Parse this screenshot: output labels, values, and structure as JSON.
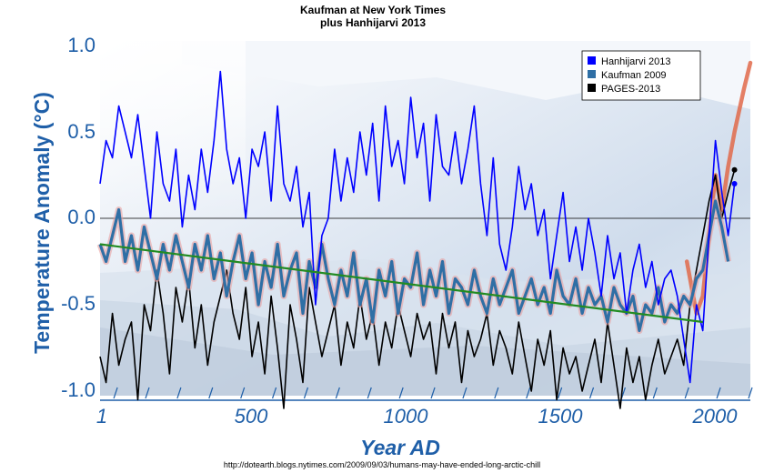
{
  "chart_data": {
    "type": "line",
    "title": "Kaufman at New York Times",
    "subtitle": "plus Hanhijarvi 2013",
    "xlabel": "Year AD",
    "ylabel": "Temperature Anomaly (°C)",
    "xlim": [
      1,
      2050
    ],
    "ylim": [
      -1.0,
      1.0
    ],
    "x_ticks": [
      "1",
      "500",
      "1000",
      "1500",
      "2000"
    ],
    "x_tick_values": [
      1,
      500,
      1000,
      1500,
      2000
    ],
    "y_ticks": [
      "1.0",
      "0.5",
      "0.0",
      "-0.5",
      "-1.0"
    ],
    "y_tick_values": [
      1.0,
      0.5,
      0.0,
      -0.5,
      -1.0
    ],
    "zero_line": true,
    "legend_position": "top-right",
    "source_url": "http://dotearth.blogs.nytimes.com/2009/09/03/humans-may-have-ended-long-arctic-chill",
    "series": [
      {
        "name": "Hanhijarvi 2013",
        "color": "#0000ff",
        "x": [
          1,
          20,
          40,
          60,
          80,
          100,
          120,
          140,
          160,
          180,
          200,
          220,
          240,
          260,
          280,
          300,
          320,
          340,
          360,
          380,
          400,
          420,
          440,
          460,
          480,
          500,
          520,
          540,
          560,
          580,
          600,
          620,
          640,
          660,
          680,
          700,
          720,
          740,
          760,
          780,
          800,
          820,
          840,
          860,
          880,
          900,
          920,
          940,
          960,
          980,
          1000,
          1020,
          1040,
          1060,
          1080,
          1100,
          1120,
          1140,
          1160,
          1180,
          1200,
          1220,
          1240,
          1260,
          1280,
          1300,
          1320,
          1340,
          1360,
          1380,
          1400,
          1420,
          1440,
          1460,
          1480,
          1500,
          1520,
          1540,
          1560,
          1580,
          1600,
          1620,
          1640,
          1660,
          1680,
          1700,
          1720,
          1740,
          1760,
          1780,
          1800,
          1820,
          1840,
          1860,
          1880,
          1900,
          1920,
          1940,
          1960,
          1980,
          2000
        ],
        "values": [
          0.2,
          0.45,
          0.35,
          0.65,
          0.5,
          0.35,
          0.6,
          0.3,
          0.0,
          0.5,
          0.2,
          0.1,
          0.4,
          -0.05,
          0.25,
          0.05,
          0.4,
          0.15,
          0.45,
          0.85,
          0.4,
          0.2,
          0.35,
          0.0,
          0.4,
          0.3,
          0.5,
          0.1,
          0.65,
          0.2,
          0.1,
          0.3,
          -0.05,
          0.15,
          -0.5,
          -0.1,
          0.0,
          0.4,
          0.1,
          0.35,
          0.15,
          0.5,
          0.25,
          0.55,
          0.1,
          0.65,
          0.3,
          0.45,
          0.2,
          0.7,
          0.35,
          0.55,
          0.1,
          0.6,
          0.3,
          0.25,
          0.5,
          0.2,
          0.4,
          0.65,
          0.2,
          -0.1,
          0.35,
          -0.15,
          -0.3,
          -0.05,
          0.3,
          0.05,
          0.2,
          -0.1,
          0.05,
          -0.35,
          -0.1,
          0.15,
          -0.25,
          -0.05,
          -0.3,
          0.0,
          -0.2,
          -0.45,
          -0.1,
          -0.35,
          -0.2,
          -0.55,
          -0.3,
          -0.15,
          -0.4,
          -0.25,
          -0.5,
          -0.35,
          -0.3,
          -0.45,
          -0.7,
          -0.95,
          -0.5,
          -0.65,
          -0.1,
          0.45,
          0.15,
          -0.1,
          0.2
        ]
      },
      {
        "name": "Kaufman 2009",
        "color": "#2f6fa5",
        "x": [
          1,
          20,
          40,
          60,
          80,
          100,
          120,
          140,
          160,
          180,
          200,
          220,
          240,
          260,
          280,
          300,
          320,
          340,
          360,
          380,
          400,
          420,
          440,
          460,
          480,
          500,
          520,
          540,
          560,
          580,
          600,
          620,
          640,
          660,
          680,
          700,
          720,
          740,
          760,
          780,
          800,
          820,
          840,
          860,
          880,
          900,
          920,
          940,
          960,
          980,
          1000,
          1020,
          1040,
          1060,
          1080,
          1100,
          1120,
          1140,
          1160,
          1180,
          1200,
          1220,
          1240,
          1260,
          1280,
          1300,
          1320,
          1340,
          1360,
          1380,
          1400,
          1420,
          1440,
          1460,
          1480,
          1500,
          1520,
          1540,
          1560,
          1580,
          1600,
          1620,
          1640,
          1660,
          1680,
          1700,
          1720,
          1740,
          1760,
          1780,
          1800,
          1820,
          1840,
          1860,
          1880,
          1900,
          1920,
          1940,
          1960,
          1980
        ],
        "values": [
          -0.15,
          -0.25,
          -0.1,
          0.05,
          -0.25,
          -0.1,
          -0.3,
          -0.05,
          -0.2,
          -0.35,
          -0.15,
          -0.3,
          -0.1,
          -0.25,
          -0.4,
          -0.15,
          -0.3,
          -0.1,
          -0.35,
          -0.2,
          -0.45,
          -0.25,
          -0.1,
          -0.35,
          -0.2,
          -0.5,
          -0.25,
          -0.4,
          -0.15,
          -0.45,
          -0.3,
          -0.2,
          -0.55,
          -0.25,
          -0.4,
          -0.15,
          -0.35,
          -0.5,
          -0.3,
          -0.45,
          -0.2,
          -0.5,
          -0.35,
          -0.6,
          -0.3,
          -0.45,
          -0.25,
          -0.55,
          -0.35,
          -0.4,
          -0.2,
          -0.5,
          -0.3,
          -0.45,
          -0.25,
          -0.55,
          -0.35,
          -0.4,
          -0.5,
          -0.3,
          -0.45,
          -0.55,
          -0.35,
          -0.5,
          -0.4,
          -0.3,
          -0.55,
          -0.45,
          -0.35,
          -0.5,
          -0.4,
          -0.55,
          -0.3,
          -0.45,
          -0.5,
          -0.35,
          -0.55,
          -0.4,
          -0.5,
          -0.45,
          -0.6,
          -0.4,
          -0.5,
          -0.55,
          -0.45,
          -0.65,
          -0.5,
          -0.55,
          -0.4,
          -0.6,
          -0.5,
          -0.55,
          -0.45,
          -0.5,
          -0.35,
          -0.3,
          -0.1,
          0.1,
          -0.05,
          -0.25
        ]
      },
      {
        "name": "PAGES-2013",
        "color": "#000000",
        "x": [
          1,
          20,
          40,
          60,
          80,
          100,
          120,
          140,
          160,
          180,
          200,
          220,
          240,
          260,
          280,
          300,
          320,
          340,
          360,
          380,
          400,
          420,
          440,
          460,
          480,
          500,
          520,
          540,
          560,
          580,
          600,
          620,
          640,
          660,
          680,
          700,
          720,
          740,
          760,
          780,
          800,
          820,
          840,
          860,
          880,
          900,
          920,
          940,
          960,
          980,
          1000,
          1020,
          1040,
          1060,
          1080,
          1100,
          1120,
          1140,
          1160,
          1180,
          1200,
          1220,
          1240,
          1260,
          1280,
          1300,
          1320,
          1340,
          1360,
          1380,
          1400,
          1420,
          1440,
          1460,
          1480,
          1500,
          1520,
          1540,
          1560,
          1580,
          1600,
          1620,
          1640,
          1660,
          1680,
          1700,
          1720,
          1740,
          1760,
          1780,
          1800,
          1820,
          1840,
          1860,
          1880,
          1900,
          1920,
          1940,
          1960,
          1980,
          2000
        ],
        "values": [
          -0.8,
          -0.95,
          -0.55,
          -0.85,
          -0.7,
          -0.6,
          -1.05,
          -0.5,
          -0.65,
          -0.3,
          -0.55,
          -0.9,
          -0.4,
          -0.6,
          -0.35,
          -0.75,
          -0.5,
          -0.85,
          -0.6,
          -0.45,
          -0.3,
          -0.55,
          -0.7,
          -0.4,
          -0.8,
          -0.6,
          -0.9,
          -0.45,
          -0.75,
          -1.1,
          -0.5,
          -0.7,
          -0.95,
          -0.4,
          -0.6,
          -0.8,
          -0.65,
          -0.5,
          -0.85,
          -0.6,
          -0.75,
          -0.45,
          -0.7,
          -0.55,
          -0.85,
          -0.6,
          -0.75,
          -0.5,
          -0.65,
          -0.8,
          -0.55,
          -0.7,
          -0.6,
          -0.9,
          -0.55,
          -0.75,
          -0.6,
          -0.95,
          -0.65,
          -0.8,
          -0.7,
          -0.55,
          -0.85,
          -0.65,
          -0.75,
          -0.9,
          -0.6,
          -0.8,
          -1.0,
          -0.7,
          -0.85,
          -0.65,
          -1.05,
          -0.75,
          -0.9,
          -0.8,
          -1.0,
          -0.85,
          -0.7,
          -0.95,
          -0.6,
          -0.85,
          -1.1,
          -0.75,
          -0.95,
          -0.8,
          -1.05,
          -0.85,
          -0.7,
          -0.9,
          -0.8,
          -0.7,
          -0.85,
          -0.5,
          -0.3,
          -0.1,
          0.1,
          0.25,
          0.0,
          0.15,
          0.28
        ]
      }
    ],
    "trend_line": {
      "color": "#228b22",
      "x": [
        1,
        1900
      ],
      "values": [
        -0.15,
        -0.6
      ]
    },
    "instrumental_overlay": {
      "color": "#e06a4a",
      "x": [
        1850,
        1880,
        1900,
        1920,
        1940,
        1960,
        1980,
        2000,
        2030,
        2050
      ],
      "values": [
        -0.25,
        -0.55,
        -0.45,
        -0.1,
        0.25,
        0.05,
        0.3,
        0.5,
        0.75,
        0.9
      ]
    }
  }
}
